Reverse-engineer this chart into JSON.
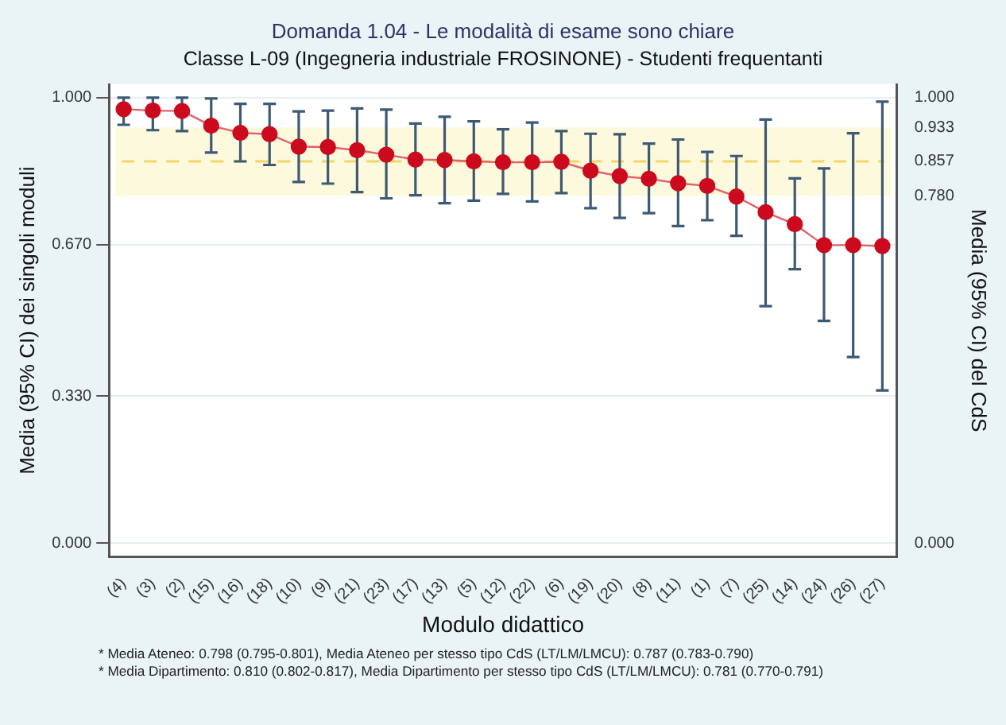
{
  "chart_data": {
    "type": "line",
    "title": "Domanda 1.04 - Le modalità di esame sono chiare",
    "subtitle": "Classe L-09 (Ingegneria industriale FROSINONE) - Studenti frequentanti",
    "xlabel": "Modulo didattico",
    "ylabel": "Media (95% CI) dei singoli moduli",
    "y2label": "Media (95% CI) del CdS",
    "categories": [
      "(4)",
      "(3)",
      "(2)",
      "(15)",
      "(16)",
      "(18)",
      "(10)",
      "(9)",
      "(21)",
      "(23)",
      "(17)",
      "(13)",
      "(5)",
      "(12)",
      "(22)",
      "(6)",
      "(19)",
      "(20)",
      "(8)",
      "(11)",
      "(1)",
      "(7)",
      "(25)",
      "(14)",
      "(24)",
      "(26)",
      "(27)"
    ],
    "series": [
      {
        "color": "#cc0a1e",
        "values": [
          0.974,
          0.971,
          0.97,
          0.937,
          0.921,
          0.918,
          0.89,
          0.889,
          0.882,
          0.872,
          0.861,
          0.86,
          0.857,
          0.855,
          0.855,
          0.856,
          0.836,
          0.824,
          0.818,
          0.808,
          0.802,
          0.778,
          0.743,
          0.716,
          0.669,
          0.669,
          0.667
        ],
        "errors": [
          [
            0.939,
            1.0
          ],
          [
            0.927,
            1.0
          ],
          [
            0.925,
            1.0
          ],
          [
            0.877,
            0.998
          ],
          [
            0.857,
            0.986
          ],
          [
            0.849,
            0.986
          ],
          [
            0.811,
            0.969
          ],
          [
            0.807,
            0.971
          ],
          [
            0.788,
            0.976
          ],
          [
            0.774,
            0.973
          ],
          [
            0.781,
            0.942
          ],
          [
            0.763,
            0.957
          ],
          [
            0.769,
            0.947
          ],
          [
            0.784,
            0.929
          ],
          [
            0.767,
            0.944
          ],
          [
            0.786,
            0.925
          ],
          [
            0.752,
            0.919
          ],
          [
            0.73,
            0.918
          ],
          [
            0.741,
            0.897
          ],
          [
            0.712,
            0.906
          ],
          [
            0.725,
            0.878
          ],
          [
            0.69,
            0.869
          ],
          [
            0.532,
            0.951
          ],
          [
            0.615,
            0.819
          ],
          [
            0.499,
            0.841
          ],
          [
            0.418,
            0.92
          ],
          [
            0.343,
            0.991
          ]
        ]
      }
    ],
    "marker": "circle",
    "grid": "y",
    "legend": false,
    "ylim": [
      -0.03,
      1.03
    ],
    "yticks": [
      {
        "value": 0,
        "label": "0.000"
      },
      {
        "value": 0.33,
        "label": "0.330"
      },
      {
        "value": 0.67,
        "label": "0.670"
      },
      {
        "value": 1,
        "label": "1.000"
      }
    ],
    "y2lim": [
      -0.03,
      1.03
    ],
    "y2ticks": [
      {
        "value": 0,
        "label": "0.000"
      },
      {
        "value": 0.78,
        "label": "0.780"
      },
      {
        "value": 0.857,
        "label": "0.857"
      },
      {
        "value": 0.933,
        "label": "0.933"
      },
      {
        "value": 1,
        "label": "1.000"
      }
    ],
    "ref_lines": [
      {
        "axis": "y2",
        "value": 0.857,
        "color": "#f2d66b",
        "line_style": "dashed"
      }
    ],
    "bands": [
      {
        "axis": "y2",
        "from": 0.78,
        "to": 0.933,
        "color": "#fdf9dc"
      }
    ],
    "annotations": [
      "* Media Ateneo: 0.798 (0.795-0.801),  Media Ateneo per stesso tipo CdS (LT/LM/LMCU): 0.787 (0.783-0.790)",
      "* Media Dipartimento: 0.810 (0.802-0.817), Media Dipartimento per stesso tipo CdS (LT/LM/LMCU): 0.781 (0.770-0.791)"
    ]
  }
}
